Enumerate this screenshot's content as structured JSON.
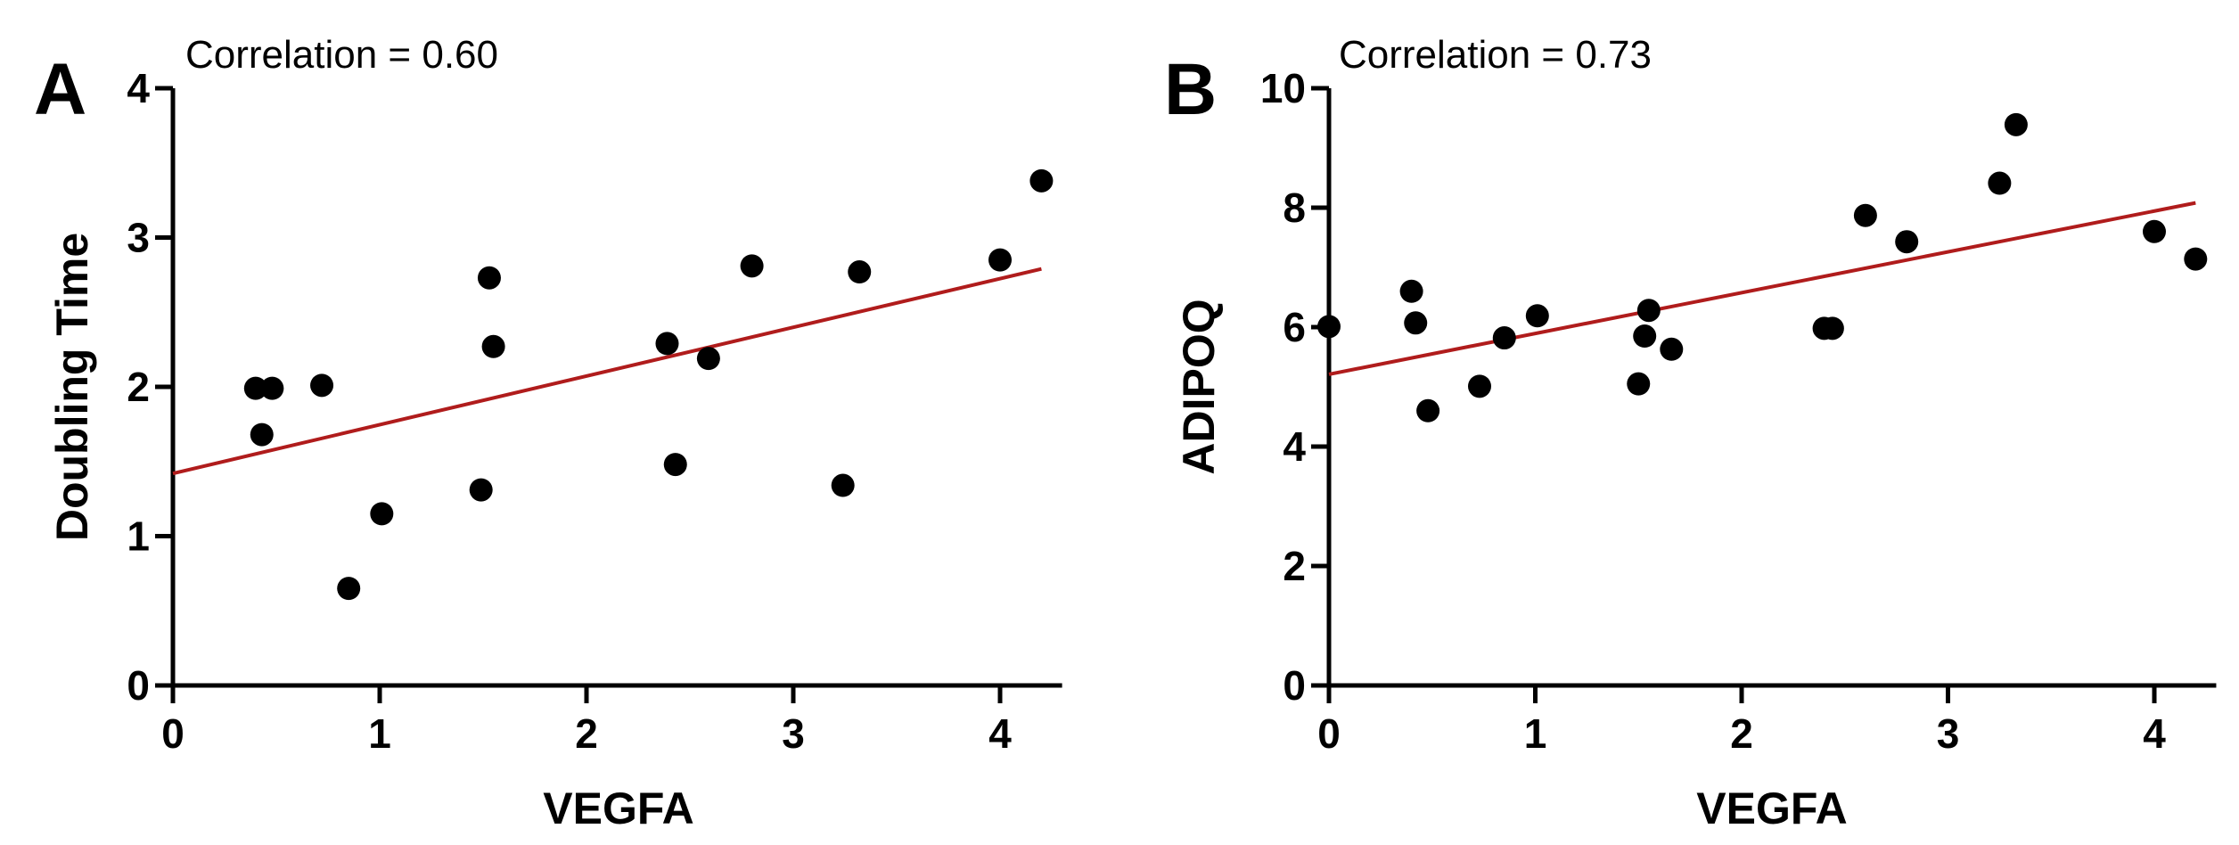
{
  "chart_data": [
    {
      "type": "scatter",
      "panel_label": "A",
      "title": "Correlation = 0.60",
      "xlabel": "VEGFA",
      "ylabel": "Doubling Time",
      "xlim": [
        0,
        4.3
      ],
      "ylim": [
        0,
        4
      ],
      "xticks": [
        "0",
        "1",
        "2",
        "3",
        "4"
      ],
      "yticks": [
        "0",
        "1",
        "2",
        "3",
        "4"
      ],
      "grid": false,
      "point_color": "#000000",
      "line_color": "#b01c1c",
      "points": [
        [
          0.4,
          1.99
        ],
        [
          0.48,
          1.99
        ],
        [
          0.43,
          1.68
        ],
        [
          0.72,
          2.01
        ],
        [
          0.85,
          0.65
        ],
        [
          1.01,
          1.15
        ],
        [
          1.49,
          1.31
        ],
        [
          1.53,
          2.73
        ],
        [
          1.55,
          2.27
        ],
        [
          2.39,
          2.29
        ],
        [
          2.43,
          1.48
        ],
        [
          2.59,
          2.19
        ],
        [
          2.8,
          2.81
        ],
        [
          3.24,
          1.34
        ],
        [
          3.32,
          2.77
        ],
        [
          4.0,
          2.85
        ],
        [
          4.2,
          3.38
        ]
      ],
      "fit_line": {
        "x": [
          0,
          4.2
        ],
        "y": [
          1.42,
          2.79
        ]
      }
    },
    {
      "type": "scatter",
      "panel_label": "B",
      "title": "Correlation = 0.73",
      "xlabel": "VEGFA",
      "ylabel": "ADIPOQ",
      "xlim": [
        0,
        4.3
      ],
      "ylim": [
        0,
        10
      ],
      "xticks": [
        "0",
        "1",
        "2",
        "3",
        "4"
      ],
      "yticks": [
        "0",
        "2",
        "4",
        "6",
        "8",
        "10"
      ],
      "grid": false,
      "point_color": "#000000",
      "line_color": "#b01c1c",
      "points": [
        [
          0.0,
          6.01
        ],
        [
          0.4,
          6.6
        ],
        [
          0.42,
          6.07
        ],
        [
          0.48,
          4.6
        ],
        [
          0.73,
          5.01
        ],
        [
          0.85,
          5.82
        ],
        [
          1.01,
          6.19
        ],
        [
          1.5,
          5.05
        ],
        [
          1.53,
          5.85
        ],
        [
          1.55,
          6.28
        ],
        [
          1.66,
          5.63
        ],
        [
          2.4,
          5.98
        ],
        [
          2.44,
          5.98
        ],
        [
          2.6,
          7.87
        ],
        [
          2.8,
          7.43
        ],
        [
          3.25,
          8.41
        ],
        [
          3.33,
          9.39
        ],
        [
          4.0,
          7.6
        ],
        [
          4.2,
          7.14
        ]
      ],
      "fit_line": {
        "x": [
          0,
          4.2
        ],
        "y": [
          5.21,
          8.08
        ]
      }
    }
  ]
}
